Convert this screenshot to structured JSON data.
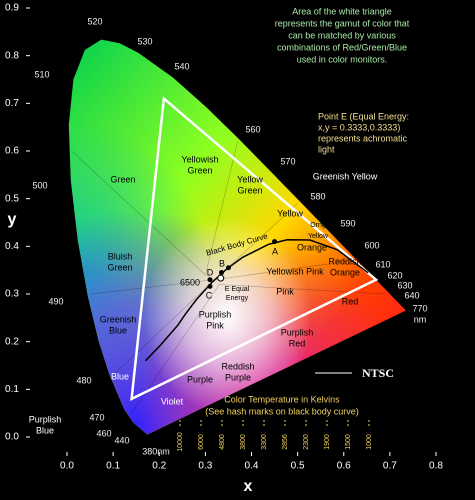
{
  "axes": {
    "x_label": "x",
    "y_label": "y",
    "xlim": [
      0,
      0.8
    ],
    "ylim": [
      0,
      0.9
    ],
    "xticks": [
      {
        "value": 0,
        "label": "0.0"
      },
      0.1,
      0.2,
      0.3,
      0.4,
      0.5,
      0.6,
      0.7,
      0.8
    ],
    "yticks": [
      {
        "value": 0,
        "label": "0.0"
      },
      0.1,
      0.2,
      0.3,
      0.4,
      0.5,
      0.6,
      0.7,
      0.8,
      0.9
    ]
  },
  "wavelengths": [
    "520",
    "530",
    "540",
    "560",
    "570",
    "580",
    "590",
    "600",
    "610",
    "620",
    "630",
    "640",
    "770",
    "nm",
    "510",
    "500",
    "490",
    "480",
    "470",
    "460",
    "440",
    "380nm"
  ],
  "regions": [
    [
      "Green"
    ],
    [
      "Yellowish",
      "Green"
    ],
    [
      "Yellow",
      "Green"
    ],
    [
      "Greenish Yellow"
    ],
    [
      "Yellow"
    ],
    [
      "Orange"
    ],
    [
      "Orng",
      "Yellow"
    ],
    [
      "Reddish",
      "Orange"
    ],
    [
      "Yellowish Pink"
    ],
    [
      "Pink"
    ],
    [
      "Red"
    ],
    [
      "Bluish",
      "Green"
    ],
    [
      "Greenish",
      "Blue"
    ],
    [
      "Blue"
    ],
    [
      "Purplish",
      "Blue"
    ],
    [
      "Violet"
    ],
    [
      "Purple"
    ],
    [
      "Reddish",
      "Purple"
    ],
    [
      "Purplish",
      "Pink"
    ],
    [
      "Purplish",
      "Red"
    ]
  ],
  "points": [
    "A",
    "B",
    "D",
    "C",
    "6500",
    "E Equal",
    "Energy"
  ],
  "black_body_label": "Black Body Curve",
  "ntsc_label": "NTSC",
  "triangle_note": [
    "Area of the white triangle",
    "represents the gamut of color that",
    "can be matched by various",
    "combinations of Red/Green/Blue",
    "used in color monitors."
  ],
  "point_e_note": [
    "Point E (Equal Energy:",
    "x,y = 0.3333,0.3333)",
    "represents achromatic",
    "light"
  ],
  "temperature_note": [
    "Color Temperature in Kelvins",
    "(See hash marks on black body curve)"
  ],
  "kelvin_marks": [
    "10000",
    "6000",
    "4800",
    "3800",
    "3300",
    "2856",
    "2300",
    "1900",
    "1500",
    "1000"
  ]
}
